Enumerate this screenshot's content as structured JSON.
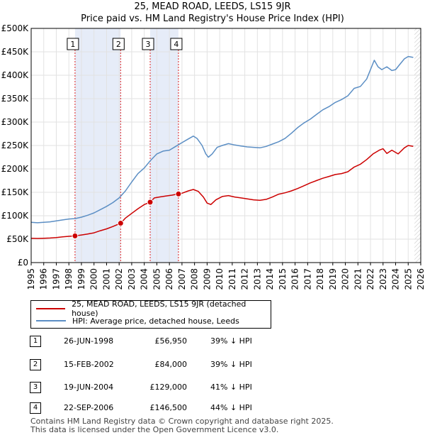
{
  "chart_data": {
    "type": "line",
    "title": "25, MEAD ROAD, LEEDS, LS15 9JR",
    "subtitle": "Price paid vs. HM Land Registry's House Price Index (HPI)",
    "x_ticks": [
      "1995",
      "1996",
      "1997",
      "1998",
      "1999",
      "2000",
      "2001",
      "2002",
      "2003",
      "2004",
      "2005",
      "2006",
      "2007",
      "2008",
      "2009",
      "2010",
      "2011",
      "2012",
      "2013",
      "2014",
      "2015",
      "2016",
      "2017",
      "2018",
      "2019",
      "2020",
      "2021",
      "2022",
      "2023",
      "2024",
      "2025",
      "2026"
    ],
    "y_ticks": [
      "£0",
      "£50K",
      "£100K",
      "£150K",
      "£200K",
      "£250K",
      "£300K",
      "£350K",
      "£400K",
      "£450K",
      "£500K"
    ],
    "xlim": [
      1995,
      2026
    ],
    "ylim": [
      0,
      500000
    ],
    "grid": true,
    "series": [
      {
        "name": "25, MEAD ROAD, LEEDS, LS15 9JR (detached house)",
        "color": "#cc0000",
        "points": [
          [
            1995.0,
            52000
          ],
          [
            1995.5,
            51500
          ],
          [
            1996.0,
            52000
          ],
          [
            1996.5,
            52500
          ],
          [
            1997.0,
            53500
          ],
          [
            1997.5,
            55000
          ],
          [
            1998.0,
            56000
          ],
          [
            1998.49,
            56950
          ],
          [
            1999.0,
            59000
          ],
          [
            1999.5,
            61000
          ],
          [
            2000.0,
            63500
          ],
          [
            2000.5,
            68000
          ],
          [
            2001.0,
            72000
          ],
          [
            2001.5,
            77000
          ],
          [
            2002.12,
            84000
          ],
          [
            2002.5,
            95000
          ],
          [
            2003.0,
            105000
          ],
          [
            2003.5,
            115000
          ],
          [
            2004.0,
            124000
          ],
          [
            2004.47,
            129000
          ],
          [
            2004.8,
            138000
          ],
          [
            2005.2,
            140000
          ],
          [
            2005.7,
            142000
          ],
          [
            2006.2,
            144000
          ],
          [
            2006.72,
            146500
          ],
          [
            2007.0,
            148000
          ],
          [
            2007.5,
            153000
          ],
          [
            2007.9,
            156000
          ],
          [
            2008.3,
            152000
          ],
          [
            2008.7,
            140000
          ],
          [
            2009.0,
            127000
          ],
          [
            2009.3,
            124000
          ],
          [
            2009.7,
            134000
          ],
          [
            2010.2,
            141000
          ],
          [
            2010.7,
            143000
          ],
          [
            2011.2,
            140000
          ],
          [
            2011.7,
            138000
          ],
          [
            2012.2,
            136000
          ],
          [
            2012.7,
            134000
          ],
          [
            2013.2,
            133000
          ],
          [
            2013.7,
            135000
          ],
          [
            2014.2,
            140000
          ],
          [
            2014.7,
            146000
          ],
          [
            2015.2,
            149000
          ],
          [
            2015.7,
            153000
          ],
          [
            2016.2,
            158000
          ],
          [
            2016.7,
            164000
          ],
          [
            2017.2,
            170000
          ],
          [
            2017.7,
            175000
          ],
          [
            2018.2,
            180000
          ],
          [
            2018.7,
            184000
          ],
          [
            2019.2,
            188000
          ],
          [
            2019.7,
            190000
          ],
          [
            2020.2,
            194000
          ],
          [
            2020.7,
            204000
          ],
          [
            2021.2,
            210000
          ],
          [
            2021.7,
            220000
          ],
          [
            2022.2,
            232000
          ],
          [
            2022.7,
            240000
          ],
          [
            2023.0,
            243000
          ],
          [
            2023.3,
            233000
          ],
          [
            2023.7,
            240000
          ],
          [
            2024.2,
            232000
          ],
          [
            2024.7,
            245000
          ],
          [
            2025.0,
            250000
          ],
          [
            2025.4,
            248000
          ]
        ]
      },
      {
        "name": "HPI: Average price, detached house, Leeds",
        "color": "#5b8ec4",
        "points": [
          [
            1995.0,
            86000
          ],
          [
            1995.5,
            85000
          ],
          [
            1996.0,
            86000
          ],
          [
            1996.5,
            87000
          ],
          [
            1997.0,
            89000
          ],
          [
            1997.5,
            91000
          ],
          [
            1998.0,
            93000
          ],
          [
            1998.5,
            94000
          ],
          [
            1999.0,
            97000
          ],
          [
            1999.5,
            101000
          ],
          [
            2000.0,
            106000
          ],
          [
            2000.5,
            113000
          ],
          [
            2001.0,
            120000
          ],
          [
            2001.5,
            128000
          ],
          [
            2002.0,
            138000
          ],
          [
            2002.5,
            153000
          ],
          [
            2003.0,
            172000
          ],
          [
            2003.5,
            190000
          ],
          [
            2004.0,
            202000
          ],
          [
            2004.5,
            218000
          ],
          [
            2005.0,
            232000
          ],
          [
            2005.5,
            238000
          ],
          [
            2006.0,
            240000
          ],
          [
            2006.5,
            248000
          ],
          [
            2007.0,
            256000
          ],
          [
            2007.5,
            264000
          ],
          [
            2007.9,
            270000
          ],
          [
            2008.2,
            265000
          ],
          [
            2008.6,
            250000
          ],
          [
            2008.9,
            232000
          ],
          [
            2009.1,
            225000
          ],
          [
            2009.4,
            232000
          ],
          [
            2009.8,
            246000
          ],
          [
            2010.2,
            250000
          ],
          [
            2010.7,
            254000
          ],
          [
            2011.2,
            251000
          ],
          [
            2011.7,
            249000
          ],
          [
            2012.2,
            247000
          ],
          [
            2012.7,
            246000
          ],
          [
            2013.2,
            245000
          ],
          [
            2013.7,
            248000
          ],
          [
            2014.2,
            253000
          ],
          [
            2014.7,
            258000
          ],
          [
            2015.2,
            265000
          ],
          [
            2015.7,
            276000
          ],
          [
            2016.2,
            288000
          ],
          [
            2016.7,
            298000
          ],
          [
            2017.2,
            306000
          ],
          [
            2017.7,
            316000
          ],
          [
            2018.2,
            326000
          ],
          [
            2018.7,
            333000
          ],
          [
            2019.2,
            342000
          ],
          [
            2019.7,
            348000
          ],
          [
            2020.2,
            356000
          ],
          [
            2020.7,
            372000
          ],
          [
            2021.2,
            376000
          ],
          [
            2021.7,
            392000
          ],
          [
            2022.0,
            412000
          ],
          [
            2022.3,
            432000
          ],
          [
            2022.6,
            418000
          ],
          [
            2022.9,
            412000
          ],
          [
            2023.3,
            418000
          ],
          [
            2023.7,
            410000
          ],
          [
            2024.0,
            412000
          ],
          [
            2024.3,
            422000
          ],
          [
            2024.7,
            435000
          ],
          [
            2025.0,
            440000
          ],
          [
            2025.4,
            438000
          ]
        ]
      }
    ],
    "sale_markers": [
      {
        "label": "1",
        "x": 1998.49,
        "y": 56950
      },
      {
        "label": "2",
        "x": 2002.12,
        "y": 84000
      },
      {
        "label": "3",
        "x": 2004.47,
        "y": 129000
      },
      {
        "label": "4",
        "x": 2006.72,
        "y": 146500
      }
    ],
    "shaded_ranges": [
      [
        1998.49,
        2002.12
      ],
      [
        2004.47,
        2006.72
      ]
    ],
    "future_hatch_start": 2025.5
  },
  "legend": {
    "property_label": "25, MEAD ROAD, LEEDS, LS15 9JR (detached house)",
    "hpi_label": "HPI: Average price, detached house, Leeds",
    "property_color": "#cc0000",
    "hpi_color": "#5b8ec4"
  },
  "sales": [
    {
      "num": "1",
      "date": "26-JUN-1998",
      "price": "£56,950",
      "hpi": "39% ↓ HPI"
    },
    {
      "num": "2",
      "date": "15-FEB-2002",
      "price": "£84,000",
      "hpi": "39% ↓ HPI"
    },
    {
      "num": "3",
      "date": "19-JUN-2004",
      "price": "£129,000",
      "hpi": "41% ↓ HPI"
    },
    {
      "num": "4",
      "date": "22-SEP-2006",
      "price": "£146,500",
      "hpi": "44% ↓ HPI"
    }
  ],
  "footer": {
    "line1": "Contains HM Land Registry data © Crown copyright and database right 2025.",
    "line2": "This data is licensed under the Open Government Licence v3.0."
  }
}
